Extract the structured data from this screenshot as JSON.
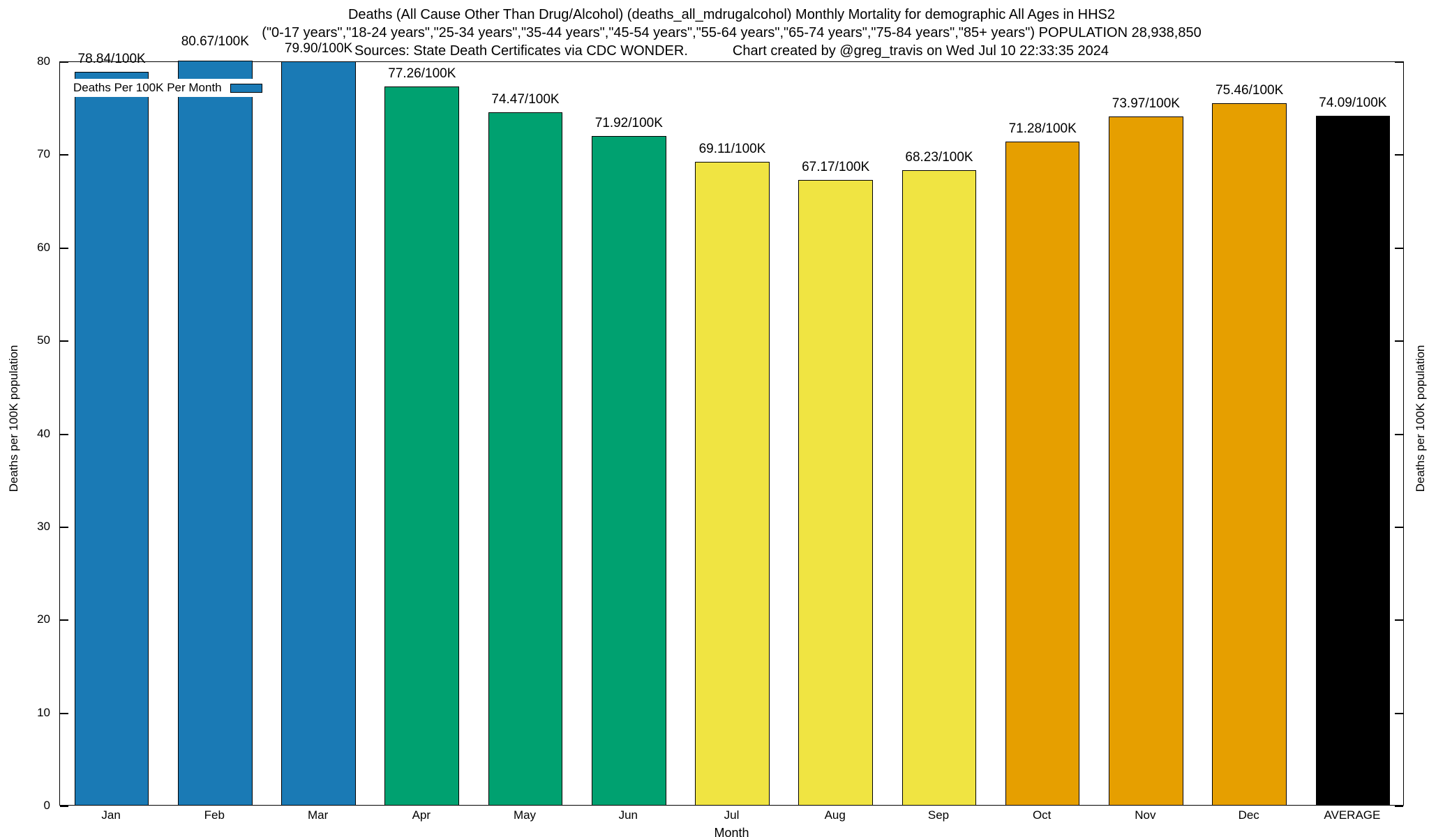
{
  "page": {
    "background": "#ffffff"
  },
  "title": {
    "line1": "Deaths (All Cause Other Than Drug/Alcohol) (deaths_all_mdrugalcohol) Monthly Mortality for demographic All Ages in HHS2",
    "line2": "(\"0-17 years\",\"18-24 years\",\"25-34 years\",\"35-44 years\",\"45-54 years\",\"55-64 years\",\"65-74 years\",\"75-84 years\",\"85+ years\") POPULATION 28,938,850",
    "sources": "Sources: State Death Certificates via CDC WONDER.",
    "credit": "Chart created by @greg_travis on Wed Jul 10 22:33:35 2024"
  },
  "legend": {
    "label": "Deaths Per 100K Per Month",
    "swatch_color": "#1a7ab5"
  },
  "chart_data": {
    "type": "bar",
    "title": "Deaths (All Cause Other Than Drug/Alcohol) (deaths_all_mdrugalcohol) Monthly Mortality for demographic All Ages in HHS2",
    "categories": [
      "Jan",
      "Feb",
      "Mar",
      "Apr",
      "May",
      "Jun",
      "Jul",
      "Aug",
      "Sep",
      "Oct",
      "Nov",
      "Dec",
      "AVERAGE"
    ],
    "values": [
      78.84,
      80.67,
      79.9,
      77.26,
      74.47,
      71.92,
      69.11,
      67.17,
      68.23,
      71.28,
      73.97,
      75.46,
      74.09
    ],
    "value_labels": [
      "78.84/100K",
      "80.67/100K",
      "79.90/100K",
      "77.26/100K",
      "74.47/100K",
      "71.92/100K",
      "69.11/100K",
      "67.17/100K",
      "68.23/100K",
      "71.28/100K",
      "73.97/100K",
      "75.46/100K",
      "74.09/100K"
    ],
    "bar_colors": [
      "#1a7ab5",
      "#1a7ab5",
      "#1a7ab5",
      "#00a170",
      "#00a170",
      "#00a170",
      "#f0e442",
      "#f0e442",
      "#f0e442",
      "#e69f00",
      "#e69f00",
      "#e69f00",
      "#000000"
    ],
    "xlabel": "Month",
    "ylabel_left": "Deaths per 100K population",
    "ylabel_right": "Deaths per 100K population",
    "ylim": [
      0,
      80
    ],
    "yticks": [
      0,
      10,
      20,
      30,
      40,
      50,
      60,
      70,
      80
    ],
    "grid": false,
    "legend_position": "top-left",
    "palette": {
      "q1_blue": "#1a7ab5",
      "q2_green": "#00a170",
      "q3_yellow": "#f0e442",
      "q4_orange": "#e69f00",
      "average_black": "#000000"
    }
  }
}
